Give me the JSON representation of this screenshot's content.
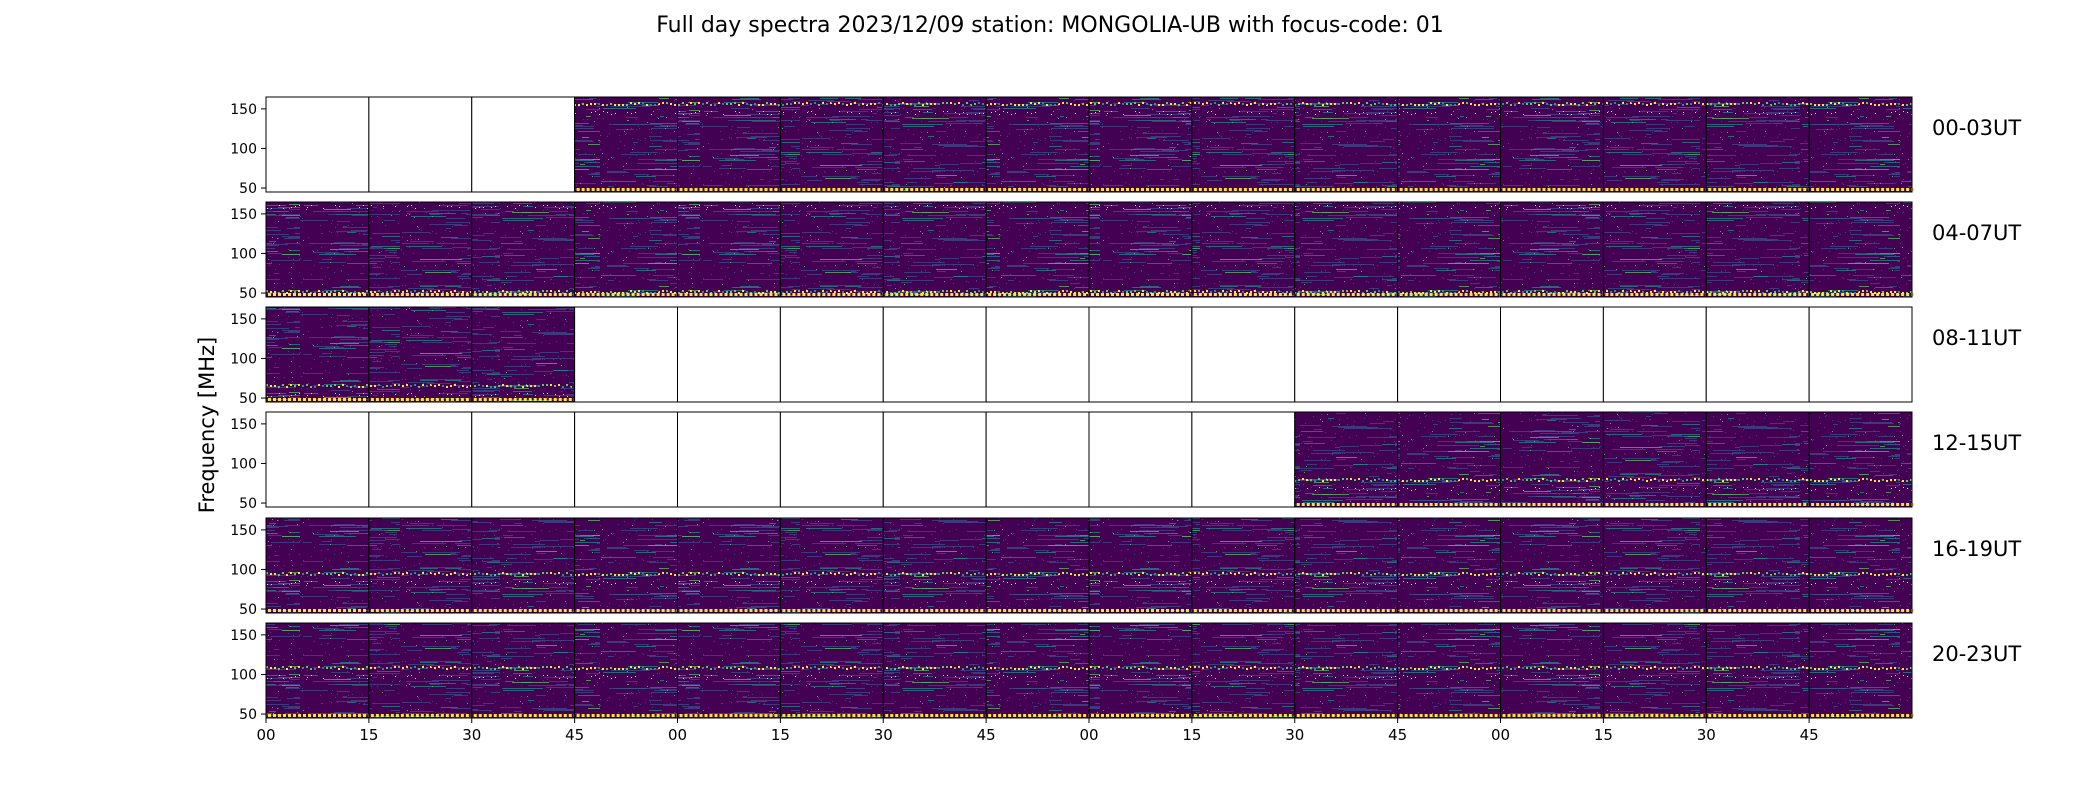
{
  "chart_data": {
    "type": "heatmap",
    "title": "Full day spectra 2023/12/09 station: MONGOLIA-UB with focus-code: 01",
    "ylabel": "Frequency [MHz]",
    "xlabel": "",
    "ylim": [
      45,
      165
    ],
    "y_ticks": [
      50,
      100,
      150
    ],
    "x_tick_labels": [
      "00",
      "15",
      "30",
      "45",
      "00",
      "15",
      "30",
      "45",
      "00",
      "15",
      "30",
      "45",
      "00",
      "15",
      "30",
      "45"
    ],
    "colormap": [
      "#440154",
      "#3b528b",
      "#21918c",
      "#5ec962",
      "#fde725"
    ],
    "panels_per_row": 16,
    "panel_minutes": 15,
    "rows": [
      {
        "label": "00-03UT",
        "data_present": [
          0,
          0,
          0,
          1,
          1,
          1,
          1,
          1,
          1,
          1,
          1,
          1,
          1,
          1,
          1,
          1
        ]
      },
      {
        "label": "04-07UT",
        "data_present": [
          1,
          1,
          1,
          1,
          1,
          1,
          1,
          1,
          1,
          1,
          1,
          1,
          1,
          1,
          1,
          1
        ]
      },
      {
        "label": "08-11UT",
        "data_present": [
          1,
          1,
          1,
          0,
          0,
          0,
          0,
          0,
          0,
          0,
          0,
          0,
          0,
          0,
          0,
          0
        ]
      },
      {
        "label": "12-15UT",
        "data_present": [
          0,
          0,
          0,
          0,
          0,
          0,
          0,
          0,
          0,
          0,
          1,
          1,
          1,
          1,
          1,
          1
        ]
      },
      {
        "label": "16-19UT",
        "data_present": [
          1,
          1,
          1,
          1,
          1,
          1,
          1,
          1,
          1,
          1,
          1,
          1,
          1,
          1,
          1,
          1
        ]
      },
      {
        "label": "20-23UT",
        "data_present": [
          1,
          1,
          1,
          1,
          1,
          1,
          1,
          1,
          1,
          1,
          1,
          1,
          1,
          1,
          1,
          1
        ]
      }
    ]
  }
}
